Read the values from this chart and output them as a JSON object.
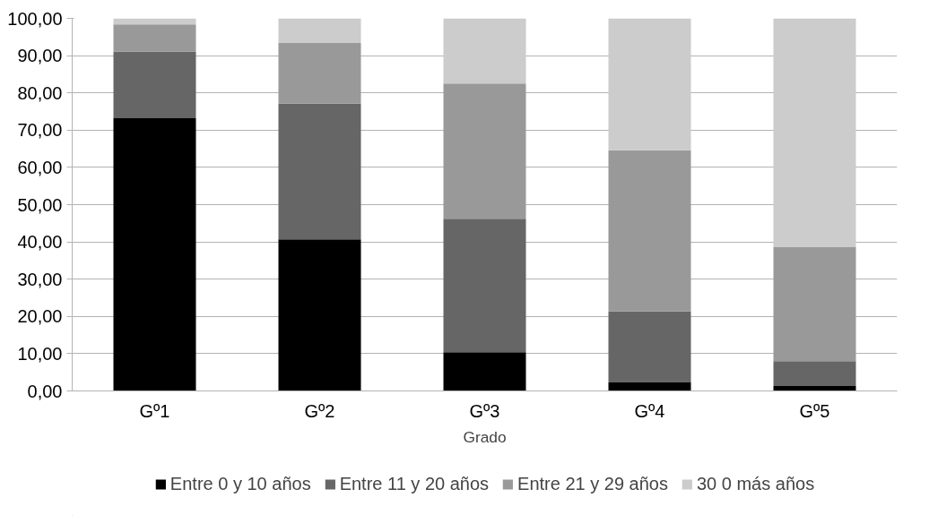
{
  "chart_data": {
    "type": "bar",
    "stacked": true,
    "xlabel": "Grado",
    "categories": [
      "Gº1",
      "Gº2",
      "Gº3",
      "Gº4",
      "Gº5"
    ],
    "series": [
      {
        "name": "Entre 0 y 10 años",
        "color": "#000000",
        "values": [
          73.2,
          40.7,
          10.4,
          2.3,
          1.3
        ]
      },
      {
        "name": "Entre 11 y 20 años",
        "color": "#666666",
        "values": [
          17.9,
          36.4,
          35.8,
          19.1,
          6.7
        ]
      },
      {
        "name": "Entre 21 y 29 años",
        "color": "#999999",
        "values": [
          7.3,
          16.3,
          36.3,
          43.2,
          30.7
        ]
      },
      {
        "name": "30 0 más años",
        "color": "#cccccc",
        "values": [
          1.6,
          6.6,
          17.5,
          35.4,
          61.3
        ]
      }
    ],
    "ylim": [
      0,
      100
    ],
    "yticks": [
      {
        "value": 0,
        "label": "0,00"
      },
      {
        "value": 10,
        "label": "10,00"
      },
      {
        "value": 20,
        "label": "20,00"
      },
      {
        "value": 30,
        "label": "30,00"
      },
      {
        "value": 40,
        "label": "40,00"
      },
      {
        "value": 50,
        "label": "50,00"
      },
      {
        "value": 60,
        "label": "60,00"
      },
      {
        "value": 70,
        "label": "70,00"
      },
      {
        "value": 80,
        "label": "80,00"
      },
      {
        "value": 90,
        "label": "90,00"
      },
      {
        "value": 100,
        "label": "100,00"
      }
    ],
    "grid": "y",
    "legend": "bottom"
  }
}
